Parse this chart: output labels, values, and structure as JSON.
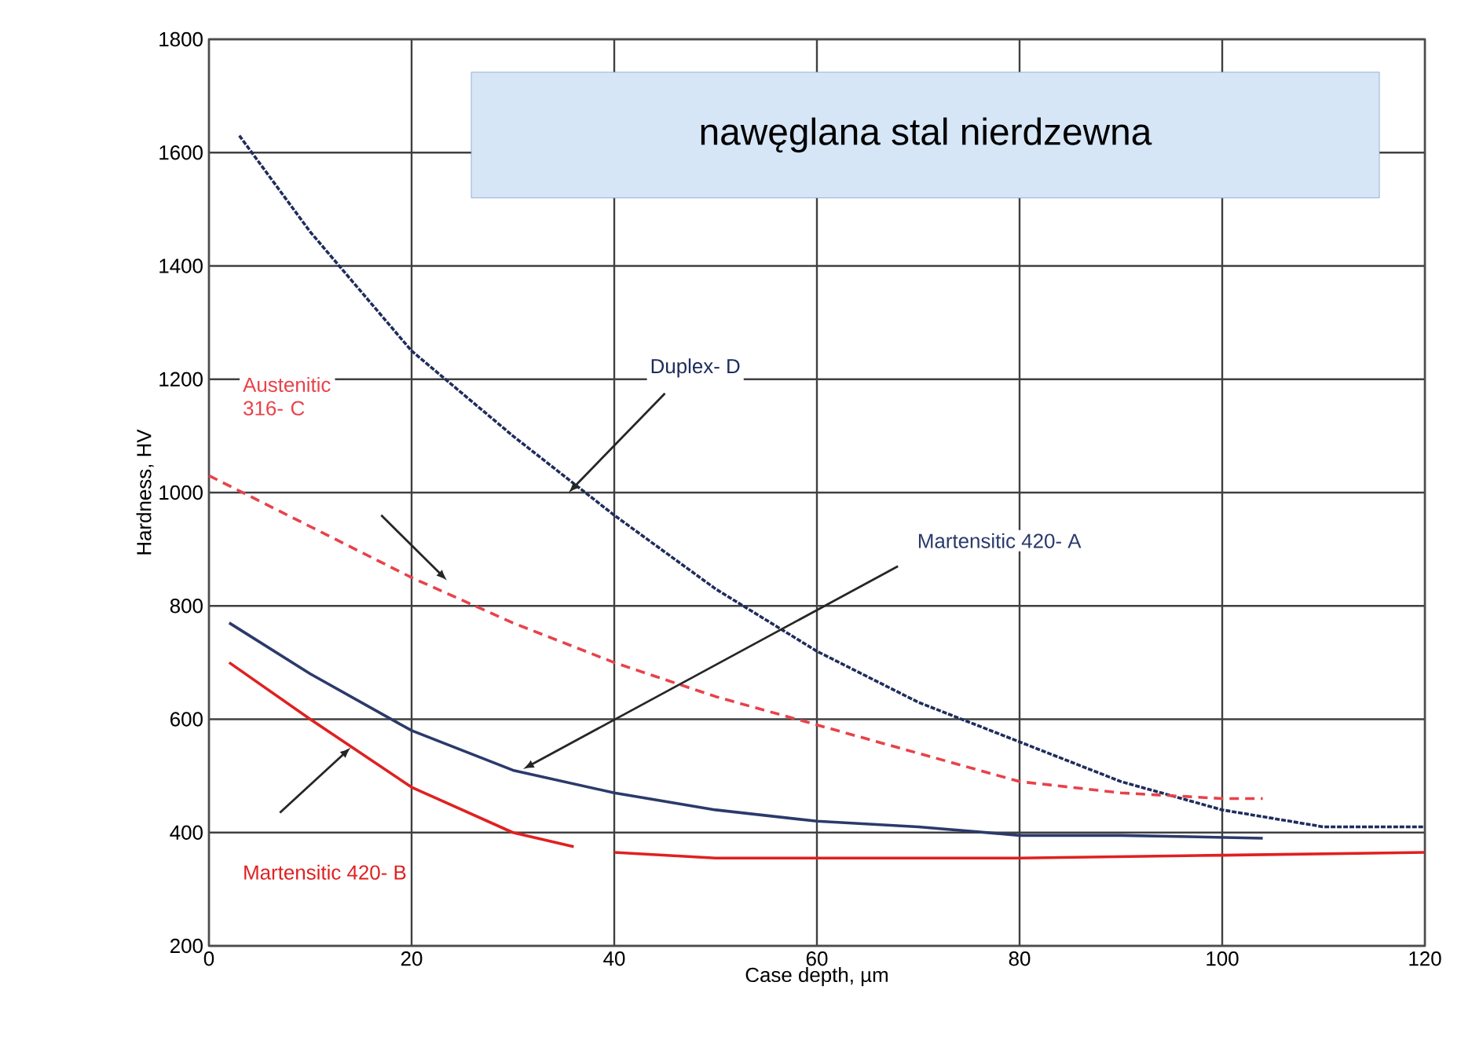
{
  "chart_data": {
    "type": "line",
    "title": "nawęglana stal nierdzewna",
    "xlabel": "Case depth, µm",
    "ylabel": "Hardness, HV",
    "xlim": [
      0,
      120
    ],
    "xticks": [
      0,
      20,
      40,
      60,
      80,
      100,
      120
    ],
    "ylim": [
      200,
      1800
    ],
    "yticks": [
      200,
      400,
      600,
      800,
      1000,
      1200,
      1400,
      1600,
      1800
    ],
    "grid": true,
    "marker": "none",
    "series": [
      {
        "name": "Duplex- D",
        "color": "#1f2d5c",
        "line_style": "dotted",
        "x": [
          3,
          10,
          20,
          30,
          40,
          50,
          60,
          70,
          80,
          90,
          100,
          110,
          120
        ],
        "values": [
          1630,
          1460,
          1250,
          1100,
          960,
          830,
          720,
          630,
          560,
          490,
          440,
          410,
          410
        ]
      },
      {
        "name": "Austenitic 316- C",
        "color": "#e8424a",
        "line_style": "dashed",
        "x": [
          0,
          10,
          20,
          30,
          40,
          50,
          60,
          70,
          80,
          90,
          100,
          104
        ],
        "values": [
          1030,
          940,
          850,
          770,
          700,
          640,
          590,
          540,
          490,
          470,
          460,
          460
        ]
      },
      {
        "name": "Martensitic 420- A",
        "color": "#2b3a6b",
        "line_style": "solid",
        "x": [
          2,
          10,
          20,
          30,
          40,
          50,
          60,
          70,
          80,
          90,
          104
        ],
        "values": [
          770,
          680,
          580,
          510,
          470,
          440,
          420,
          410,
          395,
          395,
          390
        ]
      },
      {
        "name": "Martensitic 420- B",
        "color": "#e02020",
        "line_style": "solid",
        "x": [
          2,
          10,
          20,
          30,
          36,
          38,
          40,
          50,
          60,
          80,
          100,
          120
        ],
        "values": [
          700,
          600,
          480,
          400,
          375,
          null,
          365,
          355,
          355,
          355,
          360,
          365
        ]
      }
    ]
  }
}
